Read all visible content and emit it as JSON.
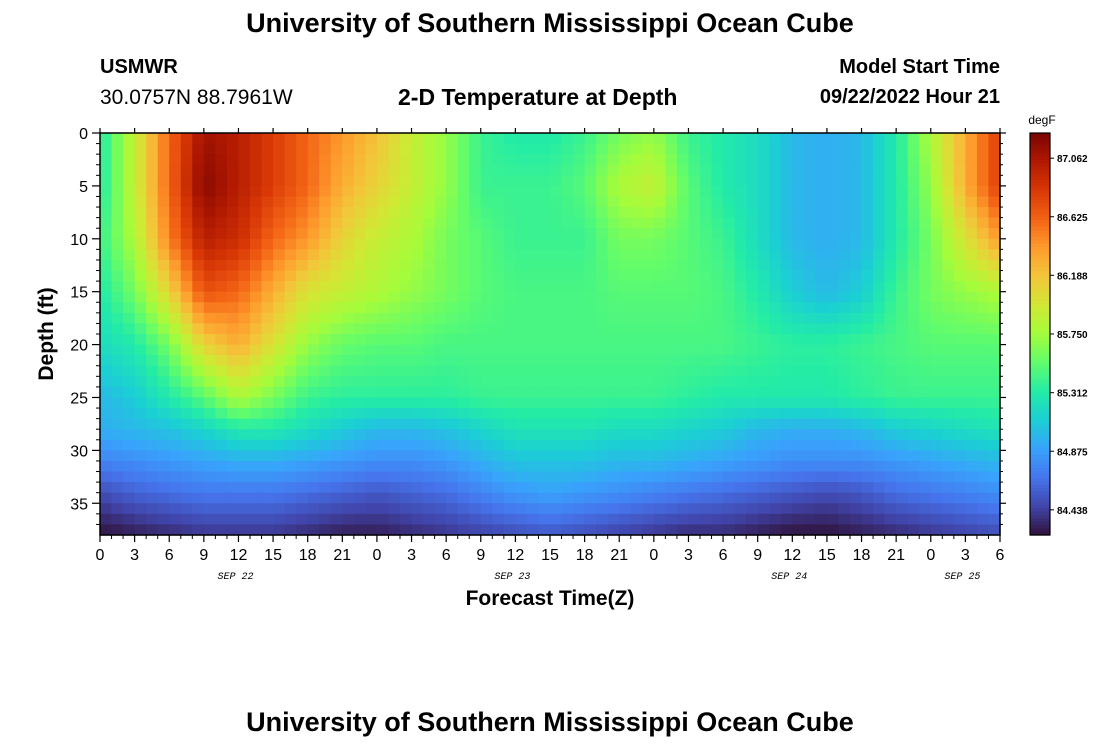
{
  "page": {
    "title": "University of Southern Mississippi Ocean Cube",
    "station": "USMWR",
    "coordinates": "30.0757N  88.7961W",
    "plot_title": "2-D Temperature at Depth",
    "model_start_label": "Model Start Time",
    "model_start_value": "09/22/2022 Hour 21",
    "footer_title": "University of Southern Mississippi Ocean Cube"
  },
  "chart_data": {
    "type": "heatmap",
    "title": "2-D Temperature at Depth",
    "xlabel": "Forecast Time(Z)",
    "ylabel": "Depth (ft)",
    "x_ticks": [
      "0",
      "3",
      "6",
      "9",
      "12",
      "15",
      "18",
      "21",
      "0",
      "3",
      "6",
      "9",
      "12",
      "15",
      "18",
      "21",
      "0",
      "3",
      "6",
      "9",
      "12",
      "15",
      "18",
      "21",
      "0",
      "3",
      "6"
    ],
    "x_range_hours": [
      0,
      78
    ],
    "date_labels": [
      {
        "label": "SEP 22",
        "hour": 12
      },
      {
        "label": "SEP 23",
        "hour": 36
      },
      {
        "label": "SEP 24",
        "hour": 60
      },
      {
        "label": "SEP 25",
        "hour": 75
      }
    ],
    "y_ticks": [
      0,
      5,
      10,
      15,
      20,
      25,
      30,
      35
    ],
    "y_range": [
      0,
      38
    ],
    "colorbar": {
      "unit": "degF",
      "ticks": [
        "87.062",
        "86.625",
        "86.188",
        "85.750",
        "85.312",
        "84.875",
        "84.438"
      ],
      "min": 84.25,
      "max": 87.25,
      "colors": [
        "#30123b",
        "#4145ab",
        "#4675ed",
        "#39a2fc",
        "#1bcfd4",
        "#24eca6",
        "#61fc6c",
        "#a4fc3b",
        "#d1e834",
        "#f3c63a",
        "#fe9b2d",
        "#f36315",
        "#d93806",
        "#b11901",
        "#7a0402"
      ]
    },
    "grid": {
      "hours": [
        0,
        3,
        6,
        9,
        12,
        15,
        18,
        21,
        24,
        27,
        30,
        33,
        36,
        39,
        42,
        45,
        48,
        51,
        54,
        57,
        60,
        63,
        66,
        69,
        72,
        75,
        78
      ],
      "depths": [
        0,
        5,
        10,
        15,
        20,
        25,
        28,
        31,
        34,
        38
      ],
      "values": [
        [
          85.3,
          85.9,
          86.6,
          87.1,
          87.0,
          86.8,
          86.6,
          86.4,
          86.2,
          85.9,
          85.7,
          85.4,
          85.3,
          85.3,
          85.4,
          85.6,
          85.7,
          85.4,
          85.3,
          85.2,
          85.0,
          84.95,
          85.0,
          85.3,
          85.8,
          86.3,
          86.8
        ],
        [
          85.3,
          85.9,
          86.6,
          87.2,
          87.0,
          86.8,
          86.6,
          86.3,
          86.1,
          85.9,
          85.7,
          85.4,
          85.4,
          85.4,
          85.5,
          85.8,
          85.9,
          85.5,
          85.3,
          85.2,
          85.0,
          84.95,
          85.0,
          85.3,
          85.7,
          86.3,
          86.8
        ],
        [
          85.4,
          85.8,
          86.5,
          87.0,
          86.9,
          86.6,
          86.4,
          86.1,
          85.9,
          85.8,
          85.6,
          85.5,
          85.4,
          85.4,
          85.4,
          85.6,
          85.6,
          85.5,
          85.4,
          85.2,
          85.0,
          84.95,
          85.0,
          85.3,
          85.6,
          86.0,
          86.4
        ],
        [
          85.3,
          85.6,
          86.1,
          86.7,
          86.6,
          86.3,
          86.0,
          85.9,
          85.8,
          85.7,
          85.6,
          85.5,
          85.45,
          85.45,
          85.45,
          85.5,
          85.5,
          85.5,
          85.45,
          85.3,
          85.1,
          85.0,
          85.1,
          85.4,
          85.6,
          85.7,
          85.8
        ],
        [
          85.2,
          85.3,
          85.6,
          86.1,
          86.3,
          86.0,
          85.7,
          85.55,
          85.5,
          85.5,
          85.45,
          85.45,
          85.45,
          85.45,
          85.45,
          85.45,
          85.45,
          85.45,
          85.45,
          85.4,
          85.35,
          85.35,
          85.4,
          85.45,
          85.5,
          85.5,
          85.5
        ],
        [
          85.0,
          85.1,
          85.3,
          85.5,
          85.8,
          85.6,
          85.4,
          85.35,
          85.35,
          85.35,
          85.35,
          85.4,
          85.4,
          85.4,
          85.4,
          85.4,
          85.4,
          85.35,
          85.3,
          85.3,
          85.3,
          85.3,
          85.35,
          85.4,
          85.4,
          85.4,
          85.4
        ],
        [
          84.95,
          85.0,
          85.05,
          85.15,
          85.3,
          85.3,
          85.2,
          85.1,
          85.0,
          85.0,
          85.05,
          85.15,
          85.25,
          85.25,
          85.25,
          85.2,
          85.2,
          85.15,
          85.1,
          85.0,
          84.95,
          84.95,
          85.0,
          85.1,
          85.15,
          85.2,
          85.25
        ],
        [
          84.75,
          84.8,
          84.85,
          84.9,
          84.95,
          84.95,
          84.9,
          84.85,
          84.8,
          84.8,
          84.85,
          84.95,
          85.05,
          85.05,
          85.05,
          85.0,
          85.0,
          84.95,
          84.9,
          84.85,
          84.8,
          84.8,
          84.8,
          84.85,
          84.9,
          84.95,
          85.0
        ],
        [
          84.5,
          84.6,
          84.65,
          84.7,
          84.7,
          84.7,
          84.65,
          84.6,
          84.55,
          84.6,
          84.65,
          84.75,
          84.85,
          84.9,
          84.85,
          84.8,
          84.75,
          84.7,
          84.65,
          84.6,
          84.55,
          84.5,
          84.55,
          84.65,
          84.7,
          84.75,
          84.8
        ],
        [
          84.25,
          84.3,
          84.35,
          84.4,
          84.4,
          84.4,
          84.35,
          84.3,
          84.3,
          84.35,
          84.4,
          84.45,
          84.5,
          84.55,
          84.5,
          84.45,
          84.4,
          84.35,
          84.35,
          84.3,
          84.25,
          84.25,
          84.3,
          84.35,
          84.4,
          84.45,
          84.5
        ]
      ]
    }
  }
}
